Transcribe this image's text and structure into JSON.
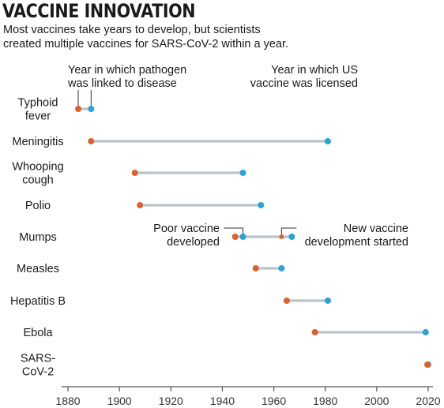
{
  "title": "VACCINE INNOVATION",
  "subtitle_lines": [
    "Most vaccines take years to develop, but scientists",
    "created multiple vaccines for SARS-CoV-2 within a year."
  ],
  "colors": {
    "pathogen": "#e0602a",
    "vaccine": "#29a3dc",
    "bar": "#bcc3cb",
    "axis": "#555555"
  },
  "chart_data": {
    "type": "dumbbell",
    "x_ticks": [
      1880,
      1900,
      1920,
      1940,
      1960,
      1980,
      2000,
      2020
    ],
    "xlim": [
      1880,
      2020
    ],
    "legend": {
      "start_label": [
        "Year in which pathogen",
        "was linked to disease"
      ],
      "end_label": [
        "Year in which US",
        "vaccine was licensed"
      ]
    },
    "annotations": {
      "poor_vaccine": [
        "Poor vaccine",
        "developed"
      ],
      "new_vaccine": [
        "New vaccine",
        "development started"
      ]
    },
    "rows": [
      {
        "disease": [
          "Typhoid",
          "fever"
        ],
        "linked": 1884,
        "licensed": 1889
      },
      {
        "disease": [
          "Meningitis"
        ],
        "linked": 1889,
        "licensed": 1981
      },
      {
        "disease": [
          "Whooping",
          "cough"
        ],
        "linked": 1906,
        "licensed": 1948
      },
      {
        "disease": [
          "Polio"
        ],
        "linked": 1908,
        "licensed": 1955
      },
      {
        "disease": [
          "Mumps"
        ],
        "linked": 1945,
        "licensed": 1948,
        "second_linked": 1963,
        "second_licensed": 1967
      },
      {
        "disease": [
          "Measles"
        ],
        "linked": 1953,
        "licensed": 1963
      },
      {
        "disease": [
          "Hepatitis B"
        ],
        "linked": 1965,
        "licensed": 1981
      },
      {
        "disease": [
          "Ebola"
        ],
        "linked": 1976,
        "licensed": 2019
      },
      {
        "disease": [
          "SARS-",
          "CoV-2"
        ],
        "linked": 2019.7,
        "licensed": 2020
      }
    ]
  }
}
